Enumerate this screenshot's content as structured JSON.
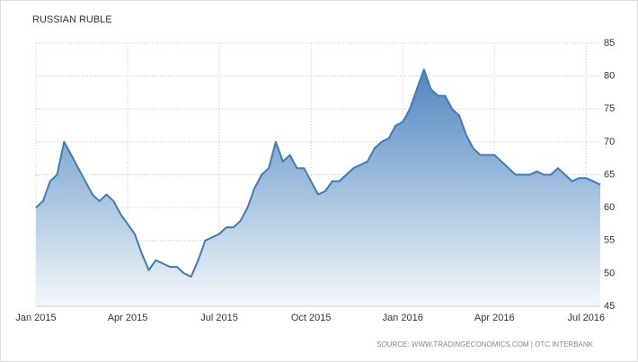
{
  "chart_data": {
    "type": "line",
    "title": "RUSSIAN RUBLE",
    "source": "SOURCE: WWW.TRADINGECONOMICS.COM | OTC INTERBANK",
    "categories": [
      "Jan 2015",
      null,
      null,
      null,
      null,
      null,
      null,
      null,
      null,
      null,
      null,
      null,
      null,
      "Apr 2015",
      null,
      null,
      null,
      null,
      null,
      null,
      null,
      null,
      null,
      null,
      null,
      null,
      "Jul 2015",
      null,
      null,
      null,
      null,
      null,
      null,
      null,
      null,
      null,
      null,
      null,
      null,
      "Oct 2015",
      null,
      null,
      null,
      null,
      null,
      null,
      null,
      null,
      null,
      null,
      null,
      null,
      "Jan 2016",
      null,
      null,
      null,
      null,
      null,
      null,
      null,
      null,
      null,
      null,
      null,
      null,
      "Apr 2016",
      null,
      null,
      null,
      null,
      null,
      null,
      null,
      null,
      null,
      null,
      null,
      null,
      "Jul 2016",
      null,
      null
    ],
    "values": [
      60,
      61,
      64,
      65,
      70,
      68,
      66,
      64,
      62,
      61,
      62,
      61,
      59,
      57.5,
      56,
      53,
      50.5,
      52,
      51.5,
      51,
      51,
      50,
      49.5,
      52,
      55,
      55.5,
      56,
      57,
      57,
      58,
      60,
      63,
      65,
      66,
      70,
      67,
      68,
      66,
      66,
      64,
      62,
      62.5,
      64,
      64,
      65,
      66,
      66.5,
      67,
      69,
      70,
      70.5,
      72.5,
      73,
      75,
      78,
      81,
      78,
      77,
      77,
      75,
      74,
      71,
      69,
      68,
      68,
      68,
      67,
      66,
      65,
      65,
      65,
      65.5,
      65,
      65,
      66,
      65,
      64,
      64.5,
      64.5,
      64,
      63.5
    ],
    "color": "#3f7bb5",
    "ylim": [
      45,
      85
    ],
    "yticks": [
      45,
      50,
      55,
      60,
      65,
      70,
      75,
      80,
      85
    ],
    "grid": true
  }
}
